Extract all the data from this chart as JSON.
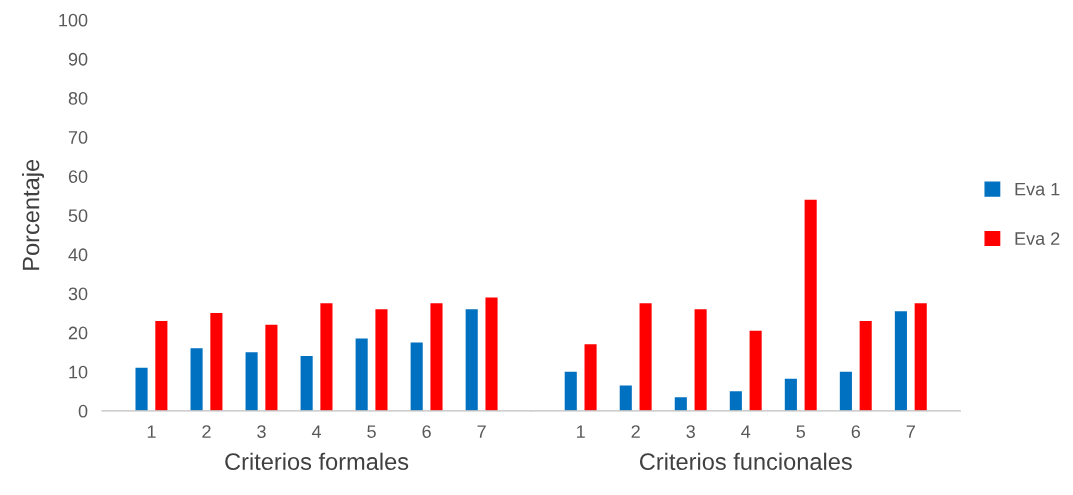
{
  "chart_data": [
    {
      "type": "bar",
      "xlabel": "Criterios formales",
      "ylabel": "Porcentaje",
      "categories": [
        "1",
        "2",
        "3",
        "4",
        "5",
        "6",
        "7"
      ],
      "series": [
        {
          "color": "#0070c0",
          "values": [
            11,
            16,
            15,
            14,
            18.5,
            17.5,
            26
          ]
        },
        {
          "color": "#ff0000",
          "values": [
            23,
            25,
            22,
            27.5,
            26,
            27.5,
            29
          ]
        }
      ],
      "ylim": [
        0,
        100
      ],
      "yticks": [
        0,
        10,
        20,
        30,
        40,
        50,
        60,
        70,
        80,
        90,
        100
      ],
      "grid": false
    },
    {
      "type": "bar",
      "xlabel": "Criterios funcionales",
      "categories": [
        "1",
        "2",
        "3",
        "4",
        "5",
        "6",
        "7"
      ],
      "series": [
        {
          "name": "Eva 1",
          "color": "#0070c0",
          "values": [
            10,
            6.5,
            3.5,
            5,
            8.2,
            10,
            25.5
          ]
        },
        {
          "name": "Eva 2",
          "color": "#ff0000",
          "values": [
            17,
            27.5,
            26,
            20.5,
            54,
            23,
            27.5
          ]
        }
      ],
      "ylim": [
        0,
        100
      ],
      "yticks": [
        0,
        10,
        20,
        30,
        40,
        50,
        60,
        70,
        80,
        90,
        100
      ],
      "grid": false,
      "legend": "right",
      "tick_labels": "x"
    }
  ]
}
